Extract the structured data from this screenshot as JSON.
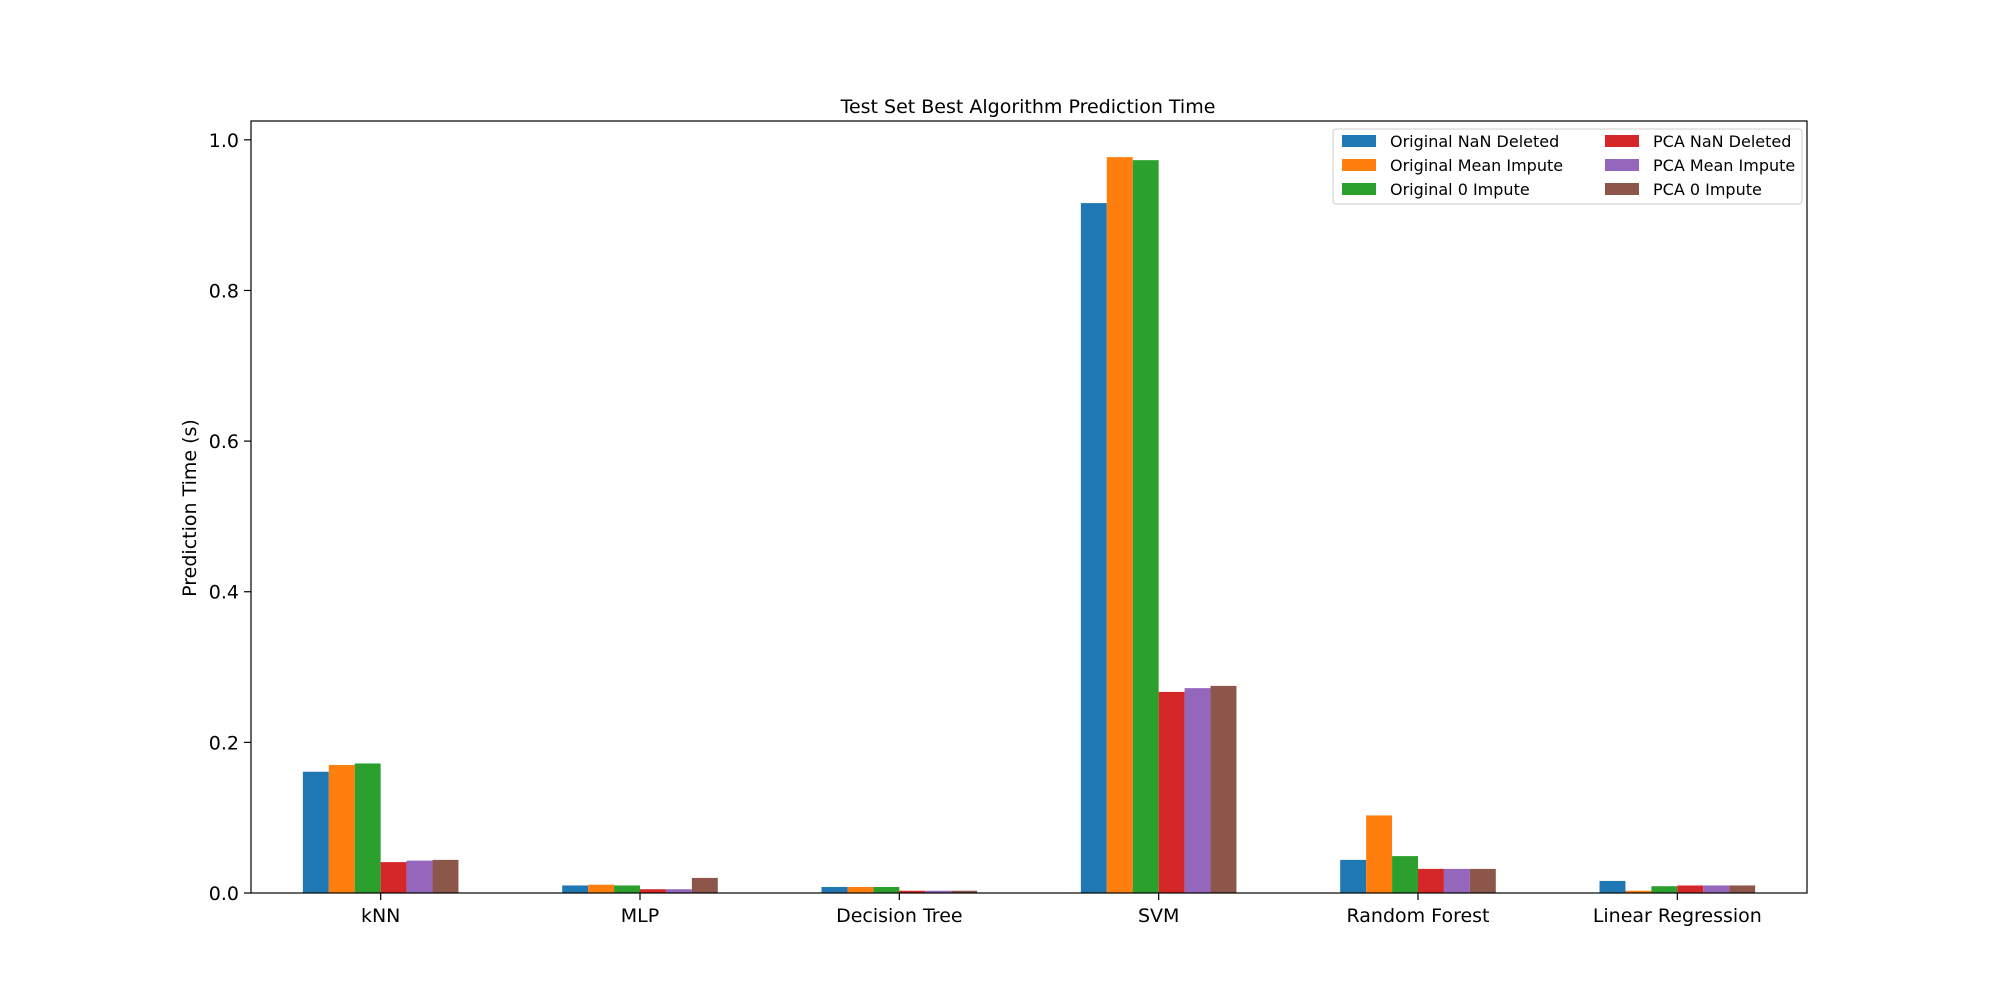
{
  "chart_data": {
    "type": "bar",
    "title": "Test Set Best Algorithm Prediction Time",
    "xlabel": "",
    "ylabel": "Prediction Time (s)",
    "ylim": [
      0,
      1.025
    ],
    "yticks": [
      "0.0",
      "0.2",
      "0.4",
      "0.6",
      "0.8",
      "1.0"
    ],
    "categories": [
      "kNN",
      "MLP",
      "Decision Tree",
      "SVM",
      "Random Forest",
      "Linear Regression"
    ],
    "series": [
      {
        "name": "Original NaN Deleted",
        "color": "#1f77b4",
        "values": [
          0.161,
          0.01,
          0.008,
          0.916,
          0.044,
          0.016
        ]
      },
      {
        "name": "Original Mean Impute",
        "color": "#ff7f0e",
        "values": [
          0.17,
          0.011,
          0.008,
          0.977,
          0.103,
          0.003
        ]
      },
      {
        "name": "Original 0 Impute",
        "color": "#2ca02c",
        "values": [
          0.172,
          0.01,
          0.008,
          0.973,
          0.049,
          0.009
        ]
      },
      {
        "name": "PCA NaN Deleted",
        "color": "#d62728",
        "values": [
          0.041,
          0.005,
          0.003,
          0.267,
          0.032,
          0.01
        ]
      },
      {
        "name": "PCA Mean Impute",
        "color": "#9467bd",
        "values": [
          0.043,
          0.005,
          0.003,
          0.272,
          0.032,
          0.01
        ]
      },
      {
        "name": "PCA 0 Impute",
        "color": "#8c564b",
        "values": [
          0.044,
          0.02,
          0.003,
          0.275,
          0.032,
          0.01
        ]
      }
    ],
    "legend_position": "top-right",
    "grid": false
  }
}
